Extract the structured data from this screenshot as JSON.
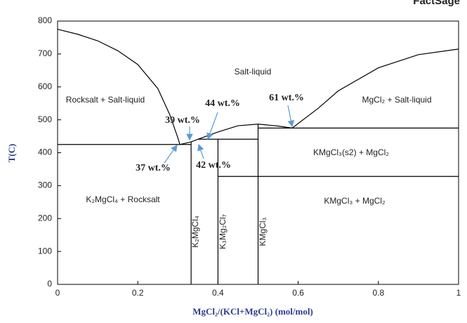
{
  "chart_data": {
    "type": "line",
    "title": "FactSage",
    "x_label": "MgCl₂/(KCl+MgCl₂) (mol/mol)",
    "y_label": "T(C)",
    "color": "#000000",
    "xlim": [
      0,
      1
    ],
    "ylim": [
      0,
      800
    ],
    "xticks": [
      0,
      0.2,
      0.4,
      0.6,
      0.8,
      1
    ],
    "yticks": [
      0,
      100,
      200,
      300,
      400,
      500,
      600,
      700,
      800
    ],
    "grid": false,
    "series": [
      {
        "x": [
          0,
          0.05,
          0.1,
          0.15,
          0.2,
          0.25,
          0.28,
          0.3,
          0.305
        ],
        "values": [
          775,
          760,
          740,
          710,
          668,
          595,
          515,
          445,
          425
        ]
      },
      {
        "x": [
          0.305,
          0.333,
          0.35
        ],
        "values": [
          425,
          433,
          441
        ]
      },
      {
        "x": [
          0.35,
          0.4,
          0.45,
          0.5,
          0.55,
          0.585
        ],
        "values": [
          441,
          463,
          482,
          487,
          481,
          475
        ]
      },
      {
        "x": [
          0.585,
          0.65,
          0.7,
          0.8,
          0.9,
          1
        ],
        "values": [
          475,
          535,
          588,
          658,
          698,
          715
        ]
      },
      {
        "x": [
          0,
          0.333
        ],
        "values": [
          425,
          425
        ]
      },
      {
        "x": [
          0.35,
          0.5
        ],
        "values": [
          441,
          441
        ]
      },
      {
        "x": [
          0.5,
          1
        ],
        "values": [
          475,
          475
        ]
      },
      {
        "x": [
          0.4,
          1
        ],
        "values": [
          328,
          328
        ]
      },
      {
        "x": [
          0.333,
          0.333
        ],
        "values": [
          0,
          433
        ]
      },
      {
        "x": [
          0.4,
          0.4
        ],
        "values": [
          0,
          441
        ]
      },
      {
        "x": [
          0.5,
          0.5
        ],
        "values": [
          0,
          487
        ]
      }
    ],
    "region_labels": [
      "Rocksalt + Salt-liquid",
      "Salt-liquid",
      "MgCl₂ + Salt-liquid",
      "KMgCl₃(s2) + MgCl₂",
      "K₂MgCl₄ + Rocksalt",
      "KMgCl₃ + MgCl₂"
    ],
    "compound_labels": [
      "K₂MgCl₄",
      "K₃Mg₂Cl₇",
      "KMgCl₃"
    ],
    "annotations": [
      "37 wt.%",
      "39 wt.%",
      "44 wt.%",
      "42 wt.%",
      "61 wt.%"
    ]
  }
}
